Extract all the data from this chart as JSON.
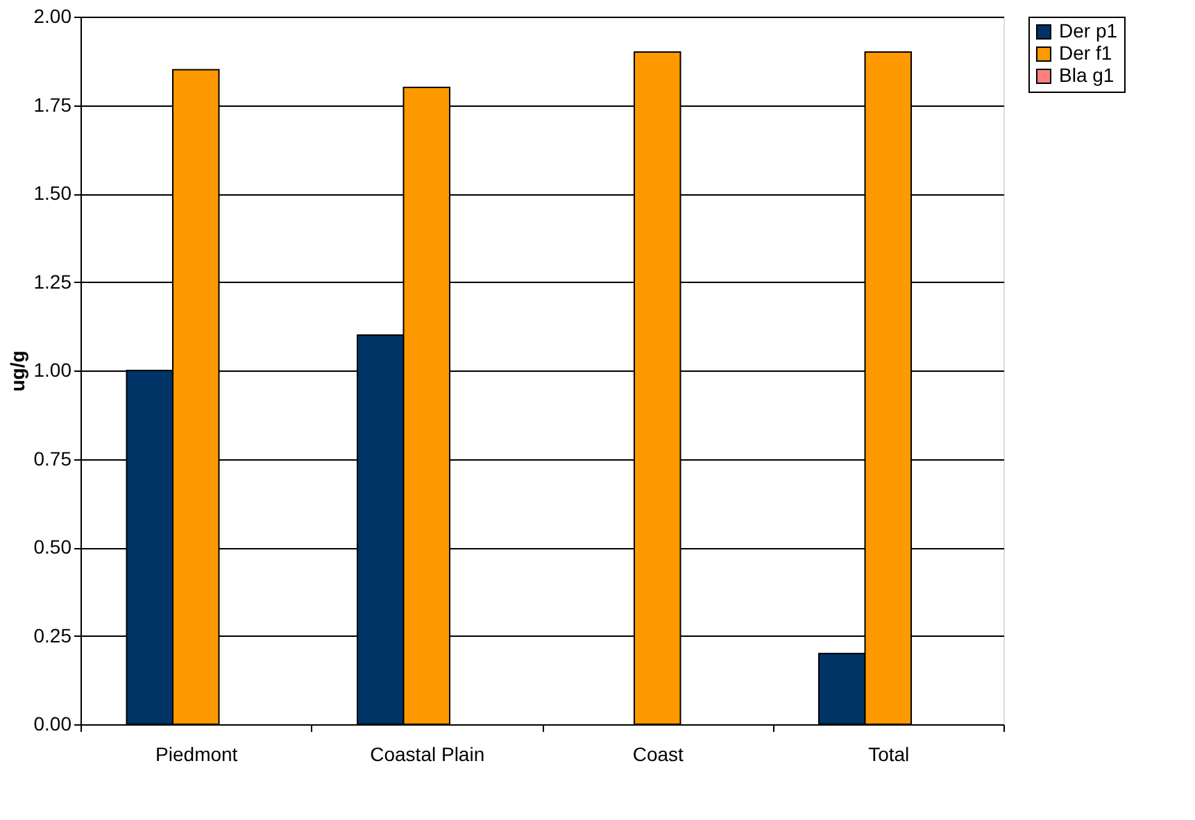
{
  "chart_data": {
    "type": "bar",
    "ylabel": "ug/g",
    "categories": [
      "Piedmont",
      "Coastal Plain",
      "Coast",
      "Total"
    ],
    "series": [
      {
        "name": "Der p1",
        "color": "#003366",
        "values": [
          1.0,
          1.1,
          null,
          0.2
        ]
      },
      {
        "name": "Der f1",
        "color": "#ff9900",
        "values": [
          1.85,
          1.8,
          1.9,
          1.9
        ]
      },
      {
        "name": "Bla g1",
        "color": "#ff8080",
        "values": [
          null,
          null,
          null,
          null
        ]
      }
    ],
    "ylim": [
      0,
      2
    ],
    "yticks": [
      {
        "value": 0,
        "label": "0.00"
      },
      {
        "value": 0.25,
        "label": "0.25"
      },
      {
        "value": 0.5,
        "label": "0.50"
      },
      {
        "value": 0.75,
        "label": "0.75"
      },
      {
        "value": 1,
        "label": "1.00"
      },
      {
        "value": 1.25,
        "label": "1.25"
      },
      {
        "value": 1.5,
        "label": "1.50"
      },
      {
        "value": 1.75,
        "label": "1.75"
      },
      {
        "value": 2,
        "label": "2.00"
      }
    ],
    "grid": "y",
    "legend": "right"
  }
}
